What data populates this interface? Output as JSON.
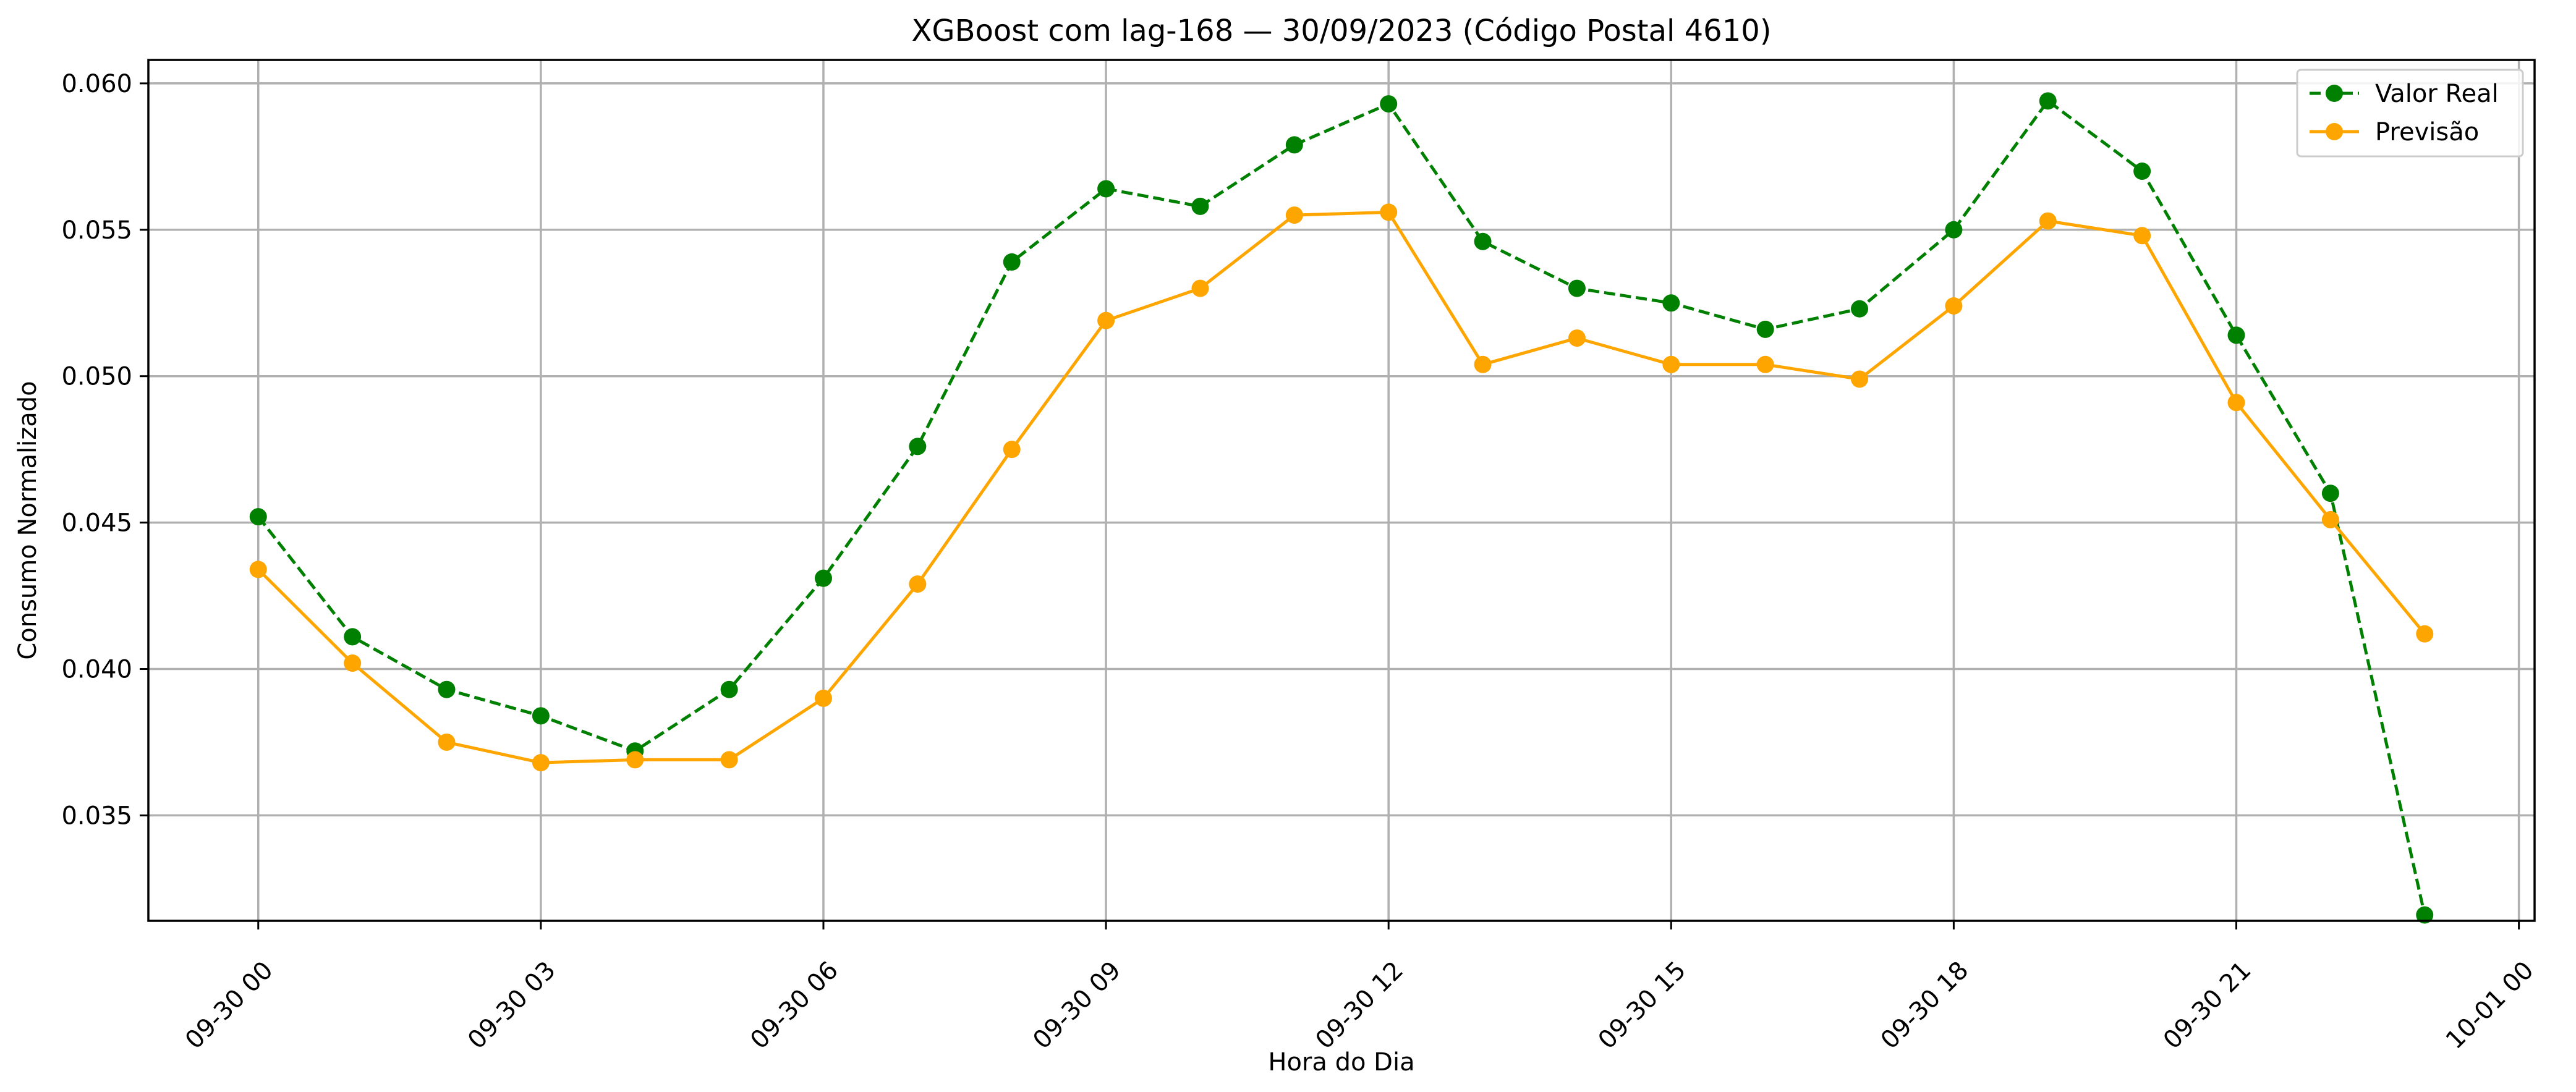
{
  "chart_data": {
    "type": "line",
    "title": "XGBoost com lag-168 — 30/09/2023 (Código Postal 4610)",
    "xlabel": "Hora do Dia",
    "ylabel": "Consumo Normalizado",
    "x": [
      "2023-09-30 00:00",
      "2023-09-30 01:00",
      "2023-09-30 02:00",
      "2023-09-30 03:00",
      "2023-09-30 04:00",
      "2023-09-30 05:00",
      "2023-09-30 06:00",
      "2023-09-30 07:00",
      "2023-09-30 08:00",
      "2023-09-30 09:00",
      "2023-09-30 10:00",
      "2023-09-30 11:00",
      "2023-09-30 12:00",
      "2023-09-30 13:00",
      "2023-09-30 14:00",
      "2023-09-30 15:00",
      "2023-09-30 16:00",
      "2023-09-30 17:00",
      "2023-09-30 18:00",
      "2023-09-30 19:00",
      "2023-09-30 20:00",
      "2023-09-30 21:00",
      "2023-09-30 22:00",
      "2023-09-30 23:00"
    ],
    "xticks": [
      "09-30 00",
      "09-30 03",
      "09-30 06",
      "09-30 09",
      "09-30 12",
      "09-30 15",
      "09-30 18",
      "09-30 21",
      "10-01 00"
    ],
    "xlim": [
      "2023-09-29 22:50",
      "2023-10-01 00:10"
    ],
    "ylim": [
      0.0314,
      0.0608
    ],
    "yticks": [
      "0.035",
      "0.040",
      "0.045",
      "0.050",
      "0.055",
      "0.060"
    ],
    "grid": true,
    "legend_position": "top-right",
    "series": [
      {
        "name": "Valor Real",
        "color": "#008000",
        "linestyle": "dashed",
        "marker": "circle",
        "values": [
          0.0452,
          0.0411,
          0.0393,
          0.0384,
          0.0372,
          0.0393,
          0.0431,
          0.0476,
          0.0539,
          0.0564,
          0.0558,
          0.0579,
          0.0593,
          0.0546,
          0.053,
          0.0525,
          0.0516,
          0.0523,
          0.055,
          0.0594,
          0.057,
          0.0514,
          0.046,
          0.0316
        ]
      },
      {
        "name": "Previsão",
        "color": "#FFA500",
        "linestyle": "solid",
        "marker": "circle",
        "values": [
          0.0434,
          0.0402,
          0.0375,
          0.0368,
          0.0369,
          0.0369,
          0.039,
          0.0429,
          0.0475,
          0.0519,
          0.053,
          0.0555,
          0.0556,
          0.0504,
          0.0513,
          0.0504,
          0.0504,
          0.0499,
          0.0524,
          0.0553,
          0.0548,
          0.0491,
          0.0451,
          0.0412
        ]
      }
    ]
  }
}
